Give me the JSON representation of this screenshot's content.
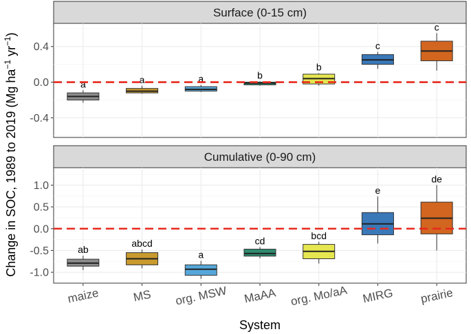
{
  "chart_data": [
    {
      "type": "boxplot",
      "title": "Surface (0-15 cm)",
      "ylim": [
        -0.62,
        0.66
      ],
      "yticks": [
        -0.4,
        0.0,
        0.4
      ],
      "ytick_labels": [
        "-0.4",
        "0.0",
        "0.4"
      ],
      "reference_line": 0,
      "categories": [
        "maize",
        "MS",
        "org. MSW",
        "MaAA",
        "org. Mo/aA",
        "MIRG",
        "prairie"
      ],
      "boxes": [
        {
          "category": "maize",
          "whisker_low": -0.23,
          "q1": -0.2,
          "median": -0.16,
          "q3": -0.12,
          "whisker_high": -0.09,
          "letter": "a",
          "color": "#8c8c8c"
        },
        {
          "category": "MS",
          "whisker_low": -0.13,
          "q1": -0.12,
          "median": -0.1,
          "q3": -0.07,
          "whisker_high": -0.04,
          "letter": "a",
          "color": "#c99a2e"
        },
        {
          "category": "org. MSW",
          "whisker_low": -0.11,
          "q1": -0.1,
          "median": -0.08,
          "q3": -0.05,
          "whisker_high": -0.03,
          "letter": "a",
          "color": "#56a7d9"
        },
        {
          "category": "MaAA",
          "whisker_low": -0.04,
          "q1": -0.03,
          "median": -0.01,
          "q3": 0.0,
          "whisker_high": 0.01,
          "letter": "b",
          "color": "#2e8b6e"
        },
        {
          "category": "org. Mo/aA",
          "whisker_low": -0.04,
          "q1": -0.02,
          "median": 0.04,
          "q3": 0.09,
          "whisker_high": 0.1,
          "letter": "b",
          "color": "#e6e650"
        },
        {
          "category": "MIRG",
          "whisker_low": 0.15,
          "q1": 0.2,
          "median": 0.25,
          "q3": 0.31,
          "whisker_high": 0.34,
          "letter": "c",
          "color": "#3a78b8"
        },
        {
          "category": "prairie",
          "whisker_low": 0.13,
          "q1": 0.24,
          "median": 0.35,
          "q3": 0.46,
          "whisker_high": 0.55,
          "letter": "c",
          "color": "#d2651f"
        }
      ]
    },
    {
      "type": "boxplot",
      "title": "Cumulative (0-90 cm)",
      "ylim": [
        -1.25,
        1.4
      ],
      "yticks": [
        -1.0,
        -0.5,
        0.0,
        0.5,
        1.0
      ],
      "ytick_labels": [
        "-1.0",
        "-0.5",
        "0.0",
        "0.5",
        "1.0"
      ],
      "reference_line": 0,
      "categories": [
        "maize",
        "MS",
        "org. MSW",
        "MaAA",
        "org. Mo/aA",
        "MIRG",
        "prairie"
      ],
      "boxes": [
        {
          "category": "maize",
          "whisker_low": -0.95,
          "q1": -0.86,
          "median": -0.79,
          "q3": -0.7,
          "whisker_high": -0.62,
          "letter": "ab",
          "color": "#8c8c8c"
        },
        {
          "category": "MS",
          "whisker_low": -0.91,
          "q1": -0.83,
          "median": -0.69,
          "q3": -0.55,
          "whisker_high": -0.48,
          "letter": "abcd",
          "color": "#c99a2e"
        },
        {
          "category": "org. MSW",
          "whisker_low": -1.15,
          "q1": -1.07,
          "median": -0.93,
          "q3": -0.83,
          "whisker_high": -0.74,
          "letter": "a",
          "color": "#56a7d9"
        },
        {
          "category": "MaAA",
          "whisker_low": -0.68,
          "q1": -0.63,
          "median": -0.57,
          "q3": -0.47,
          "whisker_high": -0.42,
          "letter": "cd",
          "color": "#2e8b6e"
        },
        {
          "category": "org. Mo/aA",
          "whisker_low": -0.8,
          "q1": -0.69,
          "median": -0.52,
          "q3": -0.36,
          "whisker_high": -0.3,
          "letter": "bcd",
          "color": "#e6e650"
        },
        {
          "category": "MIRG",
          "whisker_low": -0.34,
          "q1": -0.14,
          "median": 0.11,
          "q3": 0.37,
          "whisker_high": 0.74,
          "letter": "e",
          "color": "#3a78b8"
        },
        {
          "category": "prairie",
          "whisker_low": -0.5,
          "q1": -0.12,
          "median": 0.24,
          "q3": 0.61,
          "whisker_high": 1.0,
          "letter": "de",
          "color": "#d2651f"
        }
      ]
    }
  ],
  "x_axis_title": "System",
  "y_axis_title": {
    "main": "Change in SOC, 1989 to 2019 (Mg ha",
    "exp1": "−1",
    "mid": " yr",
    "exp2": "−1",
    "end": ")"
  }
}
